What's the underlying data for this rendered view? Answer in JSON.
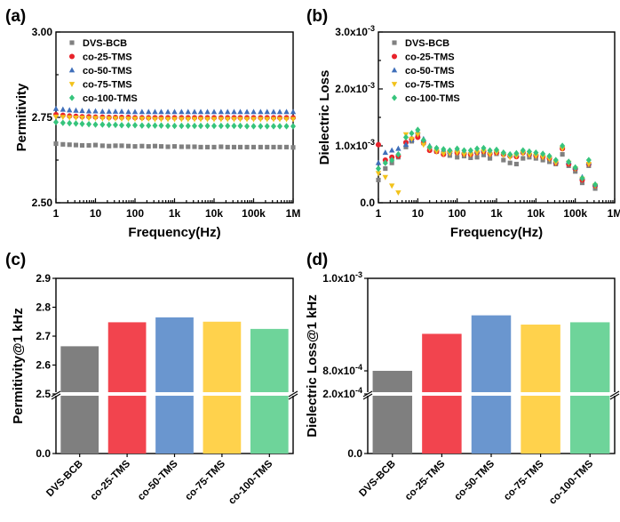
{
  "figure": {
    "labels": [
      "(a)",
      "(b)",
      "(c)",
      "(d)"
    ]
  },
  "colors": {
    "DVS-BCB": "#808080",
    "co-25-TMS": "#e8232b",
    "co-50-TMS": "#3f6fba",
    "co-75-TMS": "#f2c21b",
    "co-100-TMS": "#36c47c",
    "bar_DVS-BCB": "#7f7f7f",
    "bar_co-25-TMS": "#f2444e",
    "bar_co-50-TMS": "#6a96cf",
    "bar_co-75-TMS": "#ffd24c",
    "bar_co-100-TMS": "#6ed49a"
  },
  "chart_data": [
    {
      "id": "a",
      "type": "scatter",
      "xscale": "log",
      "xlabel": "Frequency(Hz)",
      "ylabel": "Permitivity",
      "xlim": [
        1,
        1000000
      ],
      "ylim": [
        2.5,
        3.0
      ],
      "xticks": [
        "1",
        "10",
        "100",
        "1k",
        "10k",
        "100k",
        "1M"
      ],
      "yticks": [
        "2.50",
        "2.75",
        "3.00"
      ],
      "legend_position": "top-left",
      "series": [
        {
          "name": "DVS-BCB",
          "marker": "square",
          "x": [
            1,
            1.5,
            2.2,
            3.2,
            4.6,
            6.8,
            10,
            15,
            22,
            32,
            46,
            68,
            100,
            150,
            220,
            320,
            460,
            680,
            1000,
            1500,
            2200,
            3200,
            4600,
            6800,
            10000,
            15000,
            22000,
            32000,
            46000,
            68000,
            100000,
            150000,
            220000,
            320000,
            460000,
            680000,
            1000000
          ],
          "y": [
            2.673,
            2.671,
            2.67,
            2.669,
            2.668,
            2.668,
            2.669,
            2.667,
            2.666,
            2.667,
            2.667,
            2.666,
            2.665,
            2.666,
            2.665,
            2.666,
            2.665,
            2.664,
            2.665,
            2.664,
            2.664,
            2.664,
            2.663,
            2.663,
            2.663,
            2.664,
            2.663,
            2.663,
            2.663,
            2.663,
            2.663,
            2.663,
            2.663,
            2.663,
            2.663,
            2.663,
            2.662
          ]
        },
        {
          "name": "co-25-TMS",
          "marker": "circle",
          "x": [
            1,
            1.5,
            2.2,
            3.2,
            4.6,
            6.8,
            10,
            15,
            22,
            32,
            46,
            68,
            100,
            150,
            220,
            320,
            460,
            680,
            1000,
            1500,
            2200,
            3200,
            4600,
            6800,
            10000,
            15000,
            22000,
            32000,
            46000,
            68000,
            100000,
            150000,
            220000,
            320000,
            460000,
            680000,
            1000000
          ],
          "y": [
            2.758,
            2.756,
            2.754,
            2.753,
            2.752,
            2.752,
            2.751,
            2.751,
            2.75,
            2.75,
            2.75,
            2.75,
            2.749,
            2.749,
            2.749,
            2.749,
            2.749,
            2.749,
            2.749,
            2.749,
            2.749,
            2.749,
            2.749,
            2.749,
            2.749,
            2.749,
            2.749,
            2.749,
            2.749,
            2.749,
            2.749,
            2.749,
            2.749,
            2.749,
            2.749,
            2.749,
            2.749
          ]
        },
        {
          "name": "co-50-TMS",
          "marker": "triangle-up",
          "x": [
            1,
            1.5,
            2.2,
            3.2,
            4.6,
            6.8,
            10,
            15,
            22,
            32,
            46,
            68,
            100,
            150,
            220,
            320,
            460,
            680,
            1000,
            1500,
            2200,
            3200,
            4600,
            6800,
            10000,
            15000,
            22000,
            32000,
            46000,
            68000,
            100000,
            150000,
            220000,
            320000,
            460000,
            680000,
            1000000
          ],
          "y": [
            2.775,
            2.773,
            2.771,
            2.77,
            2.769,
            2.768,
            2.768,
            2.767,
            2.767,
            2.767,
            2.767,
            2.766,
            2.766,
            2.766,
            2.766,
            2.766,
            2.766,
            2.766,
            2.766,
            2.766,
            2.766,
            2.766,
            2.766,
            2.766,
            2.766,
            2.766,
            2.766,
            2.766,
            2.766,
            2.766,
            2.766,
            2.766,
            2.766,
            2.766,
            2.766,
            2.766,
            2.766
          ]
        },
        {
          "name": "co-75-TMS",
          "marker": "triangle-down",
          "x": [
            1,
            1.5,
            2.2,
            3.2,
            4.6,
            6.8,
            10,
            15,
            22,
            32,
            46,
            68,
            100,
            150,
            220,
            320,
            460,
            680,
            1000,
            1500,
            2200,
            3200,
            4600,
            6800,
            10000,
            15000,
            22000,
            32000,
            46000,
            68000,
            100000,
            150000,
            220000,
            320000,
            460000,
            680000,
            1000000
          ],
          "y": [
            2.752,
            2.751,
            2.75,
            2.749,
            2.749,
            2.748,
            2.748,
            2.747,
            2.747,
            2.747,
            2.746,
            2.746,
            2.746,
            2.746,
            2.746,
            2.745,
            2.745,
            2.745,
            2.745,
            2.745,
            2.745,
            2.745,
            2.745,
            2.745,
            2.745,
            2.745,
            2.745,
            2.745,
            2.745,
            2.745,
            2.745,
            2.745,
            2.745,
            2.745,
            2.745,
            2.745,
            2.745
          ]
        },
        {
          "name": "co-100-TMS",
          "marker": "diamond",
          "x": [
            1,
            1.5,
            2.2,
            3.2,
            4.6,
            6.8,
            10,
            15,
            22,
            32,
            46,
            68,
            100,
            150,
            220,
            320,
            460,
            680,
            1000,
            1500,
            2200,
            3200,
            4600,
            6800,
            10000,
            15000,
            22000,
            32000,
            46000,
            68000,
            100000,
            150000,
            220000,
            320000,
            460000,
            680000,
            1000000
          ],
          "y": [
            2.736,
            2.734,
            2.733,
            2.732,
            2.731,
            2.73,
            2.729,
            2.729,
            2.728,
            2.728,
            2.727,
            2.727,
            2.727,
            2.726,
            2.726,
            2.726,
            2.726,
            2.725,
            2.725,
            2.725,
            2.725,
            2.725,
            2.725,
            2.725,
            2.725,
            2.725,
            2.725,
            2.725,
            2.725,
            2.724,
            2.724,
            2.724,
            2.724,
            2.724,
            2.724,
            2.724,
            2.724
          ]
        }
      ]
    },
    {
      "id": "b",
      "type": "scatter",
      "xscale": "log",
      "xlabel": "Frequency(Hz)",
      "ylabel": "Dielectric Loss",
      "xlim": [
        1,
        1000000
      ],
      "ylim": [
        0,
        0.003
      ],
      "xticks": [
        "1",
        "10",
        "100",
        "1k",
        "10k",
        "100k",
        "1M"
      ],
      "yticks": [
        {
          "value": 0,
          "mantissa": "0.0",
          "exp": ""
        },
        {
          "value": 0.001,
          "mantissa": "1.0x10",
          "exp": "-3"
        },
        {
          "value": 0.002,
          "mantissa": "2.0x10",
          "exp": "-3"
        },
        {
          "value": 0.003,
          "mantissa": "3.0x10",
          "exp": "-3"
        }
      ],
      "legend_position": "top-left",
      "series": [
        {
          "name": "DVS-BCB",
          "marker": "square",
          "x": [
            1,
            1.5,
            2.2,
            3.2,
            5,
            7,
            10,
            14,
            20,
            30,
            45,
            65,
            100,
            150,
            220,
            320,
            470,
            680,
            1000,
            1500,
            2200,
            3200,
            4700,
            6800,
            10000,
            15000,
            22000,
            32000,
            47000,
            68000,
            100000,
            150000,
            220000,
            320000
          ],
          "y": [
            0.0004,
            0.0006,
            0.0007,
            0.0008,
            0.00098,
            0.00108,
            0.0012,
            0.00105,
            0.00095,
            0.0009,
            0.00088,
            0.00083,
            0.0008,
            0.00082,
            0.00079,
            0.0008,
            0.00084,
            0.00078,
            0.00086,
            0.00075,
            0.0007,
            0.00068,
            0.00078,
            0.0008,
            0.00078,
            0.00075,
            0.00072,
            0.00068,
            0.00085,
            0.00065,
            0.00055,
            0.00035,
            0.00065,
            0.00025
          ]
        },
        {
          "name": "co-25-TMS",
          "marker": "circle",
          "x": [
            1,
            1.5,
            2.2,
            3.2,
            5,
            7,
            10,
            14,
            20,
            30,
            45,
            65,
            100,
            150,
            220,
            320,
            470,
            680,
            1000,
            1500,
            2200,
            3200,
            4700,
            6800,
            10000,
            15000,
            22000,
            32000,
            47000,
            68000,
            100000,
            150000,
            220000,
            320000
          ],
          "y": [
            0.00102,
            0.00075,
            0.0008,
            0.00082,
            0.00106,
            0.00112,
            0.00115,
            0.00105,
            0.00092,
            0.0009,
            0.00085,
            0.0009,
            0.00088,
            0.00086,
            0.00085,
            0.00088,
            0.0009,
            0.00086,
            0.00088,
            0.00085,
            0.00082,
            0.00081,
            0.00088,
            0.00085,
            0.00083,
            0.00081,
            0.00078,
            0.0007,
            0.00095,
            0.00068,
            0.0006,
            0.0004,
            0.00068,
            0.0003
          ]
        },
        {
          "name": "co-50-TMS",
          "marker": "triangle-up",
          "x": [
            1,
            1.5,
            2.2,
            3.2,
            5,
            7,
            10,
            14,
            20,
            30,
            45,
            65,
            100,
            150,
            220,
            320,
            470,
            680,
            1000,
            1500,
            2200,
            3200,
            4700,
            6800,
            10000,
            15000,
            22000,
            32000,
            47000,
            68000,
            100000,
            150000,
            220000,
            320000
          ],
          "y": [
            0.0007,
            0.00088,
            0.00092,
            0.00095,
            0.00102,
            0.0011,
            0.00125,
            0.00112,
            0.001,
            0.00095,
            0.00092,
            0.0009,
            0.00094,
            0.0009,
            0.0009,
            0.0009,
            0.00093,
            0.0009,
            0.00092,
            0.00088,
            0.00084,
            0.00085,
            0.0009,
            0.00087,
            0.00086,
            0.00085,
            0.00082,
            0.00072,
            0.001,
            0.00072,
            0.00062,
            0.00045,
            0.0007,
            0.00032
          ]
        },
        {
          "name": "co-75-TMS",
          "marker": "triangle-down",
          "x": [
            1,
            1.5,
            2.2,
            3.2,
            5,
            7,
            10,
            14,
            20,
            30,
            45,
            65,
            100,
            150,
            220,
            320,
            470,
            680,
            1000,
            1500,
            2200,
            3200,
            4700,
            6800,
            10000,
            15000,
            22000,
            32000,
            47000,
            68000,
            100000,
            150000,
            220000,
            320000
          ],
          "y": [
            0.00052,
            0.00045,
            0.0003,
            0.00018,
            0.0012,
            0.00112,
            0.0012,
            0.00102,
            0.00095,
            0.0009,
            0.00086,
            0.00087,
            0.00088,
            0.00085,
            0.00085,
            0.00088,
            0.0009,
            0.00085,
            0.00088,
            0.00084,
            0.0008,
            0.00082,
            0.00087,
            0.00084,
            0.00082,
            0.0008,
            0.00077,
            0.0007,
            0.00095,
            0.0007,
            0.0006,
            0.00042,
            0.00068,
            0.0003
          ]
        },
        {
          "name": "co-100-TMS",
          "marker": "diamond",
          "x": [
            1,
            1.5,
            2.2,
            3.2,
            5,
            7,
            10,
            14,
            20,
            30,
            45,
            65,
            100,
            150,
            220,
            320,
            470,
            680,
            1000,
            1500,
            2200,
            3200,
            4700,
            6800,
            10000,
            15000,
            22000,
            32000,
            47000,
            68000,
            100000,
            150000,
            220000,
            320000
          ],
          "y": [
            0.0006,
            0.0007,
            0.00075,
            0.00085,
            0.00115,
            0.00122,
            0.00128,
            0.0011,
            0.00098,
            0.00096,
            0.00094,
            0.00092,
            0.00095,
            0.00092,
            0.00092,
            0.00095,
            0.00096,
            0.00092,
            0.00093,
            0.00088,
            0.00085,
            0.00087,
            0.00092,
            0.0009,
            0.00088,
            0.00086,
            0.00082,
            0.00075,
            0.001,
            0.00072,
            0.00062,
            0.00043,
            0.00075,
            0.00032
          ]
        }
      ]
    },
    {
      "id": "c",
      "type": "bar",
      "ylabel": "Permitivity@1 kHz",
      "categories": [
        "DVS-BCB",
        "co-25-TMS",
        "co-50-TMS",
        "co-75-TMS",
        "co-100-TMS"
      ],
      "values": [
        2.665,
        2.748,
        2.765,
        2.75,
        2.725
      ],
      "axis_break": {
        "lower": [
          0,
          0.15
        ],
        "upper": [
          2.5,
          2.9
        ],
        "break_between": [
          0.15,
          2.5
        ]
      },
      "yticks": [
        "0.0",
        "2.5",
        "2.6",
        "2.7",
        "2.8",
        "2.9"
      ]
    },
    {
      "id": "d",
      "type": "bar",
      "ylabel": "Dielectric Loss@1 kHz",
      "categories": [
        "DVS-BCB",
        "co-25-TMS",
        "co-50-TMS",
        "co-75-TMS",
        "co-100-TMS"
      ],
      "values": [
        0.0008,
        0.00088,
        0.00092,
        0.0009,
        0.000905
      ],
      "axis_break": {
        "lower": [
          0,
          0.0002
        ],
        "upper": [
          0.00075,
          0.001
        ]
      },
      "yticks": [
        {
          "value": 0,
          "mantissa": "0.0",
          "exp": ""
        },
        {
          "value": 0.0002,
          "mantissa": "2.0x10",
          "exp": "-4"
        },
        {
          "value": 0.0008,
          "mantissa": "8.0x10",
          "exp": "-4"
        },
        {
          "value": 0.001,
          "mantissa": "1.0x10",
          "exp": "-3"
        }
      ]
    }
  ]
}
